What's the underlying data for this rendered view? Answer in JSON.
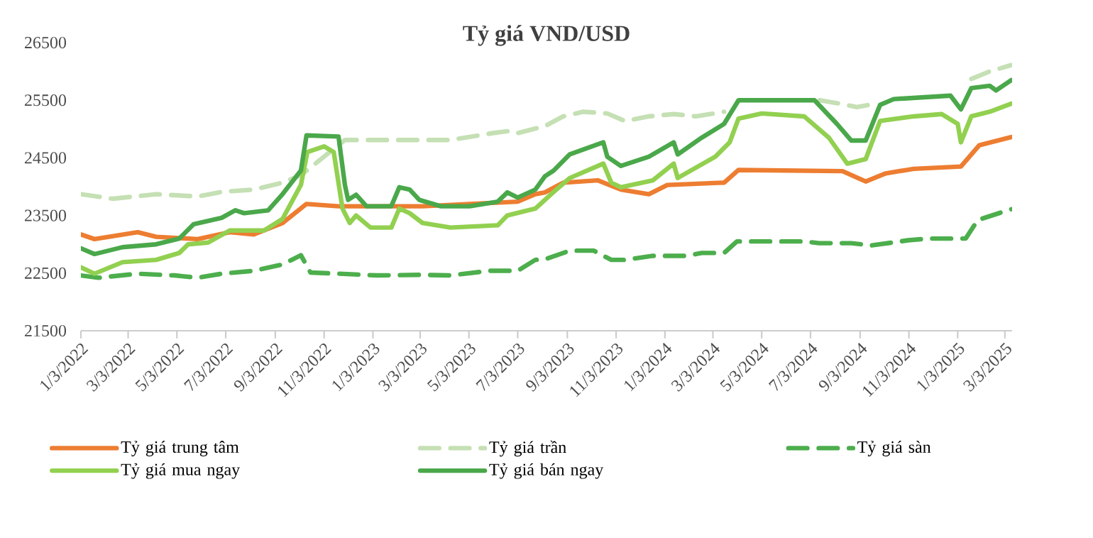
{
  "chart_data": {
    "type": "line",
    "title": "Tỷ giá VND/USD",
    "xlim": [
      "2022-01-03",
      "2025-03-12"
    ],
    "ylim": [
      21500,
      26500
    ],
    "yticks": [
      21500,
      22500,
      23500,
      24500,
      25500,
      26500
    ],
    "xticks": [
      {
        "value": "2022-01-03",
        "label": "1/3/2022"
      },
      {
        "value": "2022-03-03",
        "label": "3/3/2022"
      },
      {
        "value": "2022-05-03",
        "label": "5/3/2022"
      },
      {
        "value": "2022-07-03",
        "label": "7/3/2022"
      },
      {
        "value": "2022-09-03",
        "label": "9/3/2022"
      },
      {
        "value": "2022-11-03",
        "label": "11/3/2022"
      },
      {
        "value": "2023-01-03",
        "label": "1/3/2023"
      },
      {
        "value": "2023-03-03",
        "label": "3/3/2023"
      },
      {
        "value": "2023-05-03",
        "label": "5/3/2023"
      },
      {
        "value": "2023-07-03",
        "label": "7/3/2023"
      },
      {
        "value": "2023-09-03",
        "label": "9/3/2023"
      },
      {
        "value": "2023-11-03",
        "label": "11/3/2023"
      },
      {
        "value": "2024-01-03",
        "label": "1/3/2024"
      },
      {
        "value": "2024-03-03",
        "label": "3/3/2024"
      },
      {
        "value": "2024-05-03",
        "label": "5/3/2024"
      },
      {
        "value": "2024-07-03",
        "label": "7/3/2024"
      },
      {
        "value": "2024-09-03",
        "label": "9/3/2024"
      },
      {
        "value": "2024-11-03",
        "label": "11/3/2024"
      },
      {
        "value": "2025-01-03",
        "label": "1/3/2025"
      },
      {
        "value": "2025-03-03",
        "label": "3/3/2025"
      }
    ],
    "legend": "bottom",
    "series": [
      {
        "name": "Tỷ giá trung tâm",
        "color": "#ed7d31",
        "x": [
          "2022-01-03",
          "2022-01-20",
          "2022-03-15",
          "2022-04-07",
          "2022-05-29",
          "2022-07-08",
          "2022-08-07",
          "2022-09-12",
          "2022-10-12",
          "2022-11-21",
          "2023-03-06",
          "2023-05-04",
          "2023-07-03",
          "2023-07-25",
          "2023-08-06",
          "2023-08-29",
          "2023-10-11",
          "2023-11-09",
          "2023-12-14",
          "2024-01-06",
          "2024-03-17",
          "2024-04-04",
          "2024-08-12",
          "2024-09-10",
          "2024-10-05",
          "2024-11-09",
          "2025-01-07",
          "2025-01-30",
          "2025-03-11"
        ],
        "values": [
          23170,
          23090,
          23210,
          23130,
          23090,
          23210,
          23170,
          23370,
          23700,
          23660,
          23660,
          23700,
          23740,
          23870,
          23900,
          24070,
          24110,
          23950,
          23870,
          24030,
          24070,
          24290,
          24270,
          24090,
          24230,
          24310,
          24350,
          24720,
          24860
        ]
      },
      {
        "name": "Tỷ giá trần",
        "color": "#c5e0b4",
        "line_style": "dashed",
        "x": [
          "2022-01-03",
          "2022-02-12",
          "2022-04-07",
          "2022-05-29",
          "2022-06-28",
          "2022-08-07",
          "2022-09-12",
          "2022-10-05",
          "2022-11-29",
          "2023-03-06",
          "2023-04-10",
          "2023-06-02",
          "2023-06-25",
          "2023-07-03",
          "2023-08-06",
          "2023-08-29",
          "2023-09-23",
          "2023-10-23",
          "2023-11-14",
          "2023-12-14",
          "2024-01-14",
          "2024-02-11",
          "2024-03-17",
          "2024-05-03",
          "2024-07-14",
          "2024-08-09",
          "2024-08-30",
          "2024-09-22",
          "2024-11-02",
          "2025-01-20",
          "2025-02-12",
          "2025-03-11"
        ],
        "values": [
          23870,
          23790,
          23870,
          23830,
          23910,
          23950,
          24070,
          24200,
          24810,
          24810,
          24810,
          24930,
          24970,
          24930,
          25050,
          25220,
          25300,
          25270,
          25140,
          25220,
          25260,
          25220,
          25300,
          null,
          25500,
          25440,
          25380,
          25440,
          null,
          25870,
          26000,
          26110
        ]
      },
      {
        "name": "Tỷ giá sàn",
        "color": "#4cae4c",
        "line_style": "dashed",
        "x": [
          "2022-01-03",
          "2022-01-25",
          "2022-03-15",
          "2022-04-30",
          "2022-05-29",
          "2022-06-28",
          "2022-08-07",
          "2022-09-12",
          "2022-10-05",
          "2022-10-17",
          "2022-11-21",
          "2023-01-08",
          "2023-03-02",
          "2023-04-10",
          "2023-05-28",
          "2023-07-03",
          "2023-07-25",
          "2023-08-06",
          "2023-09-06",
          "2023-10-06",
          "2023-10-28",
          "2023-11-14",
          "2023-12-19",
          "2024-01-31",
          "2024-02-18",
          "2024-03-17",
          "2024-04-02",
          "2024-05-03",
          "2024-06-25",
          "2024-07-14",
          "2024-08-23",
          "2024-09-17",
          "2024-11-02",
          "2024-11-27",
          "2025-01-13",
          "2025-01-28",
          "2025-03-11"
        ],
        "values": [
          22460,
          22420,
          22490,
          22460,
          22420,
          22490,
          22540,
          22650,
          22810,
          22510,
          22490,
          22460,
          22470,
          22460,
          22540,
          22540,
          22730,
          22740,
          22890,
          22890,
          22730,
          22730,
          22800,
          22800,
          22850,
          22850,
          23050,
          23050,
          23050,
          23020,
          23020,
          22980,
          23070,
          23100,
          23100,
          23420,
          23610
        ]
      },
      {
        "name": "Tỷ giá mua ngay",
        "color": "#92d050",
        "x": [
          "2022-01-03",
          "2022-01-20",
          "2022-02-24",
          "2022-04-07",
          "2022-05-06",
          "2022-05-17",
          "2022-06-11",
          "2022-07-08",
          "2022-08-20",
          "2022-09-12",
          "2022-10-05",
          "2022-10-13",
          "2022-11-03",
          "2022-11-15",
          "2022-11-26",
          "2022-12-05",
          "2022-12-13",
          "2022-12-31",
          "2023-01-26",
          "2023-02-05",
          "2023-02-18",
          "2023-03-06",
          "2023-04-10",
          "2023-06-08",
          "2023-06-20",
          "2023-07-13",
          "2023-07-25",
          "2023-08-06",
          "2023-08-17",
          "2023-09-06",
          "2023-10-18",
          "2023-10-28",
          "2023-11-09",
          "2023-12-19",
          "2024-01-14",
          "2024-01-19",
          "2024-03-06",
          "2024-03-24",
          "2024-04-04",
          "2024-05-03",
          "2024-06-25",
          "2024-07-26",
          "2024-08-18",
          "2024-09-10",
          "2024-09-28",
          "2024-11-09",
          "2024-12-14",
          "2025-01-03",
          "2025-01-07",
          "2025-01-20",
          "2025-02-12",
          "2025-03-11"
        ],
        "values": [
          22600,
          22490,
          22690,
          22730,
          22850,
          23000,
          23030,
          23240,
          23240,
          23440,
          24030,
          24600,
          24700,
          24600,
          23620,
          23370,
          23500,
          23290,
          23290,
          23620,
          23540,
          23370,
          23290,
          23330,
          23500,
          23580,
          23620,
          23770,
          23910,
          24150,
          24400,
          24070,
          23990,
          24110,
          24400,
          24150,
          24520,
          24770,
          25180,
          25270,
          25220,
          24850,
          24400,
          24480,
          25140,
          25220,
          25260,
          25090,
          24770,
          25220,
          25300,
          25440
        ]
      },
      {
        "name": "Tỷ giá bán ngay",
        "color": "#4aa84a",
        "x": [
          "2022-01-03",
          "2022-01-20",
          "2022-02-24",
          "2022-04-07",
          "2022-05-06",
          "2022-05-24",
          "2022-06-28",
          "2022-07-15",
          "2022-07-26",
          "2022-08-25",
          "2022-09-12",
          "2022-10-05",
          "2022-10-12",
          "2022-11-21",
          "2022-11-29",
          "2022-12-03",
          "2022-12-13",
          "2022-12-26",
          "2023-01-26",
          "2023-02-05",
          "2023-02-18",
          "2023-03-02",
          "2023-03-29",
          "2023-05-04",
          "2023-06-08",
          "2023-06-20",
          "2023-07-03",
          "2023-07-25",
          "2023-08-06",
          "2023-08-17",
          "2023-09-06",
          "2023-10-18",
          "2023-10-23",
          "2023-11-09",
          "2023-12-14",
          "2024-01-14",
          "2024-01-19",
          "2024-02-18",
          "2024-03-17",
          "2024-04-04",
          "2024-07-08",
          "2024-08-05",
          "2024-08-23",
          "2024-09-10",
          "2024-09-28",
          "2024-10-15",
          "2024-12-25",
          "2025-01-07",
          "2025-01-20",
          "2025-02-12",
          "2025-02-20",
          "2025-03-11"
        ],
        "values": [
          22930,
          22830,
          22950,
          23000,
          23100,
          23350,
          23460,
          23590,
          23540,
          23590,
          23870,
          24280,
          24890,
          24870,
          24030,
          23770,
          23860,
          23660,
          23660,
          23990,
          23950,
          23770,
          23660,
          23660,
          23740,
          23900,
          23810,
          23950,
          24180,
          24280,
          24560,
          24770,
          24520,
          24360,
          24520,
          24770,
          24560,
          24850,
          25090,
          25500,
          25500,
          25090,
          24800,
          24800,
          25420,
          25520,
          25580,
          25340,
          25710,
          25750,
          25670,
          25850
        ]
      }
    ]
  }
}
